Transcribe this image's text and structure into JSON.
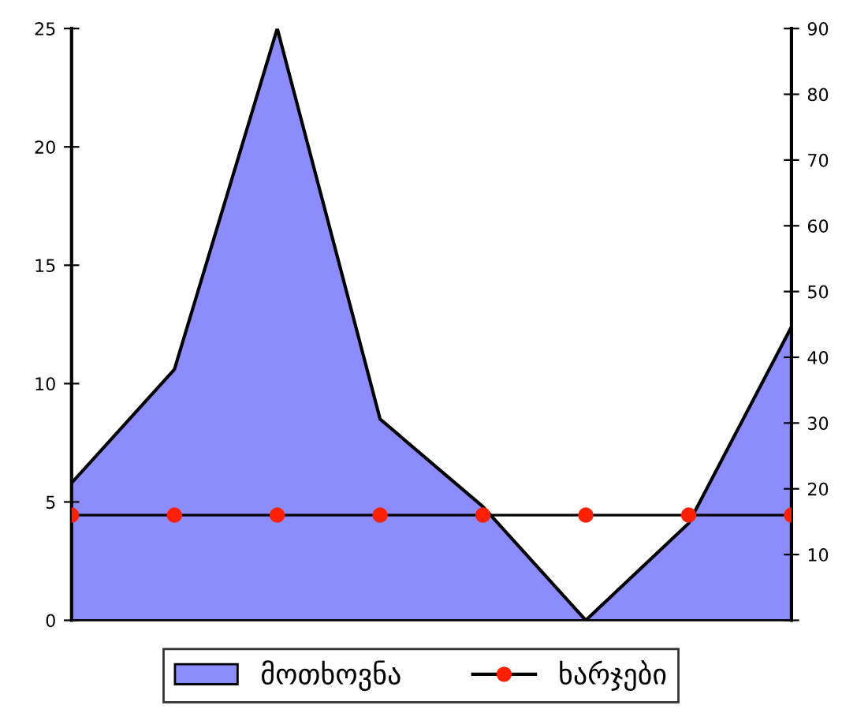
{
  "chart_data": {
    "type": "area",
    "categories": [
      null,
      null,
      null,
      null,
      null,
      null,
      null,
      null
    ],
    "series": [
      {
        "name": "მოთხოვნა",
        "color": "#8c8cff",
        "values": [
          5.8,
          10.6,
          25,
          8.5,
          4.8,
          0,
          4.1,
          12.4
        ]
      },
      {
        "name": "ხარჯები",
        "type": "line",
        "axis": "y2",
        "marker": "circle",
        "color": "#ff2000",
        "values": [
          16,
          16,
          16,
          16,
          16,
          16,
          16,
          16
        ]
      }
    ],
    "ylim": [
      0,
      25
    ],
    "yticks": [
      0,
      5,
      10,
      15,
      20,
      25
    ],
    "y2lim": [
      0,
      90
    ],
    "y2ticks": [
      {
        "value": 0,
        "label": null
      },
      10,
      20,
      30,
      40,
      50,
      60,
      70,
      80,
      90
    ],
    "grid": false,
    "legend": "bottom",
    "line_style": "solid"
  }
}
